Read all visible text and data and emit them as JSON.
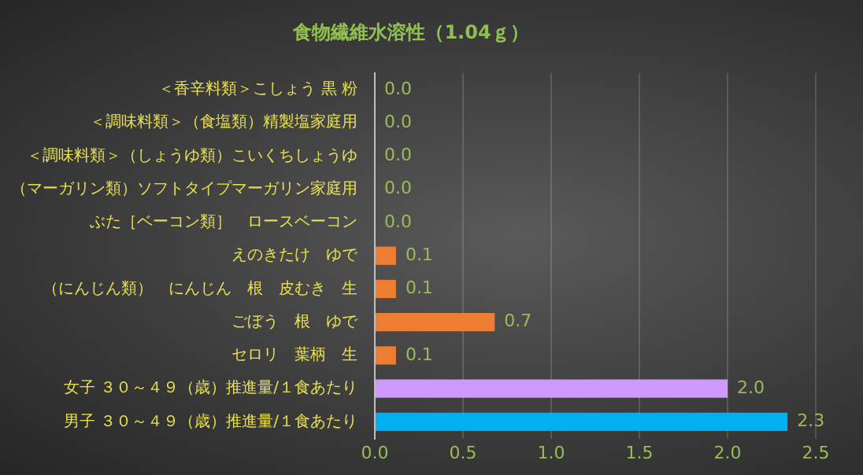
{
  "chart_data": {
    "type": "bar",
    "orientation": "horizontal",
    "title": "食物繊維水溶性（1.04ｇ）",
    "categories": [
      "＜香辛料類＞こしょう 黒 粉",
      "＜調味料類＞（食塩類）精製塩家庭用",
      "＜調味料類＞（しょうゆ類）こいくちしょうゆ",
      "（マーガリン類）ソフトタイプマーガリン家庭用",
      "ぶた［ベーコン類］　ロースベーコン",
      "えのきたけ　ゆで",
      "（にんじん類）　にんじん　根　皮むき　生",
      "ごぼう　根　ゆで",
      "セロリ　葉柄　生",
      "女子 ３０～４９（歳）推進量/１食あたり",
      "男子 ３０～４９（歳）推進量/１食あたり"
    ],
    "values": [
      0,
      0,
      0,
      0,
      0,
      0.12,
      0.12,
      0.68,
      0.12,
      2.0,
      2.34
    ],
    "value_labels": [
      "0.0",
      "0.0",
      "0.0",
      "0.0",
      "0.0",
      "0.1",
      "0.1",
      "0.7",
      "0.1",
      "2.0",
      "2.3"
    ],
    "colors": [
      "#ed7d31",
      "#ed7d31",
      "#ed7d31",
      "#ed7d31",
      "#ed7d31",
      "#ed7d31",
      "#ed7d31",
      "#ed7d31",
      "#ed7d31",
      "#cc99ff",
      "#00b0f0"
    ],
    "xlim": [
      0,
      2.5
    ],
    "xticks": [
      {
        "value": 0,
        "label": "0.0"
      },
      0.5,
      {
        "value": 1,
        "label": "1.0"
      },
      1.5,
      {
        "value": 2,
        "label": "2.0"
      },
      2.5
    ],
    "grid": "x",
    "legend": false
  }
}
